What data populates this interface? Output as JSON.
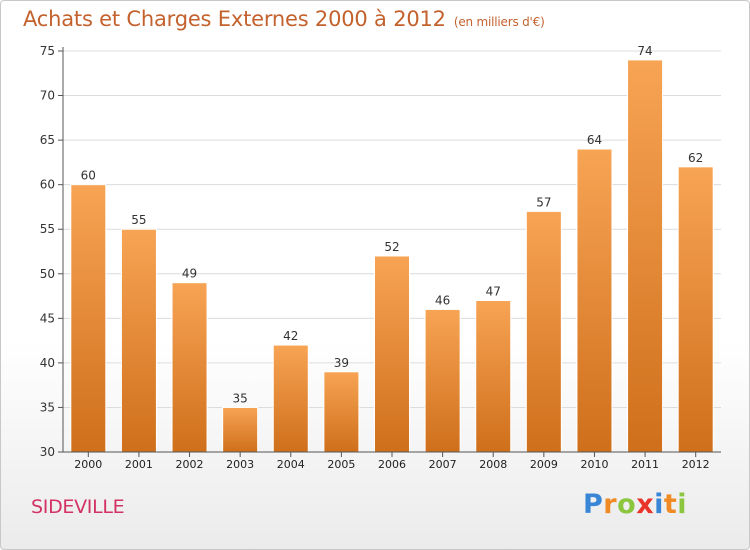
{
  "chart_data": {
    "type": "bar",
    "title": "Achats et Charges Externes 2000 à 2012",
    "subtitle": "(en milliers d'€)",
    "categories": [
      "2000",
      "2001",
      "2002",
      "2003",
      "2004",
      "2005",
      "2006",
      "2007",
      "2008",
      "2009",
      "2010",
      "2011",
      "2012"
    ],
    "values": [
      60,
      55,
      49,
      35,
      42,
      39,
      52,
      46,
      47,
      57,
      64,
      74,
      62
    ],
    "ylim": [
      30,
      75
    ],
    "yticks": [
      30,
      35,
      40,
      45,
      50,
      55,
      60,
      65,
      70,
      75
    ],
    "grid": "horizontal",
    "bar_color_top": "#f7a454",
    "bar_color_bottom": "#cf6f1b"
  },
  "commune": "SIDEVILLE",
  "logo": {
    "text": "Proxiti",
    "letters": [
      {
        "ch": "P",
        "color": "#3a86d6"
      },
      {
        "ch": "r",
        "color": "#f08a24"
      },
      {
        "ch": "o",
        "color": "#8cc63f"
      },
      {
        "ch": "x",
        "color": "#e8342a"
      },
      {
        "ch": "i",
        "color": "#3a86d6"
      },
      {
        "ch": "t",
        "color": "#f08a24"
      },
      {
        "ch": "i",
        "color": "#8cc63f"
      }
    ]
  }
}
